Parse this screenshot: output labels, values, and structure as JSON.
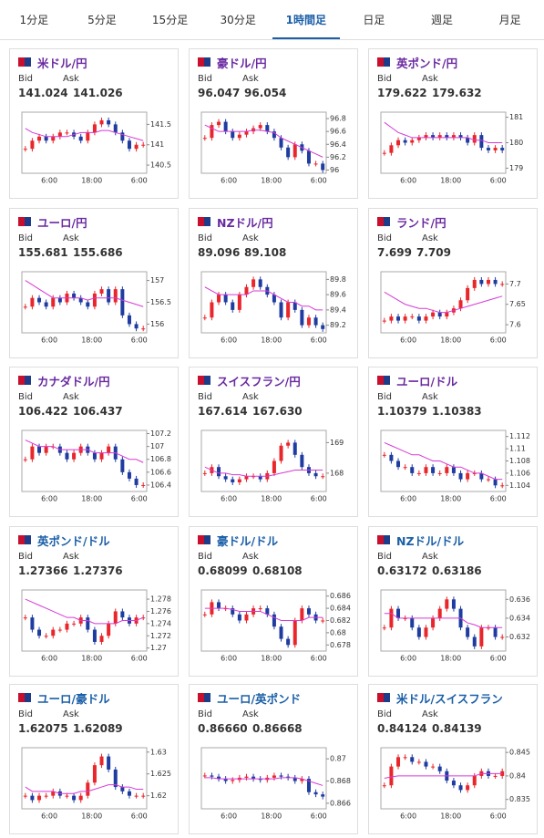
{
  "tabs": [
    "1分足",
    "5分足",
    "15分足",
    "30分足",
    "1時間足",
    "日足",
    "週足",
    "月足"
  ],
  "active_tab": 4,
  "cards": [
    {
      "name": "米ドル/円",
      "color": "#6a2aa0",
      "bid_label": "Bid",
      "ask_label": "Ask",
      "bid": "141.024",
      "ask": "141.026",
      "chart": {
        "type": "candlestick",
        "ylim": [
          140.3,
          141.8
        ],
        "yticks": [
          140.5,
          141,
          141.5
        ],
        "x_labels": [
          "6:00",
          "18:00",
          "6:00"
        ],
        "closes": [
          140.9,
          141.1,
          141.2,
          141.1,
          141.2,
          141.3,
          141.3,
          141.2,
          141.1,
          141.3,
          141.5,
          141.6,
          141.5,
          141.3,
          141.1,
          140.9,
          141.0,
          141.0
        ],
        "ma": [
          141.4,
          141.3,
          141.25,
          141.2,
          141.2,
          141.2,
          141.2,
          141.25,
          141.3,
          141.3,
          141.3,
          141.35,
          141.35,
          141.3,
          141.25,
          141.2,
          141.15,
          141.1
        ]
      }
    },
    {
      "name": "豪ドル/円",
      "color": "#6a2aa0",
      "bid_label": "Bid",
      "ask_label": "Ask",
      "bid": "96.047",
      "ask": "96.054",
      "chart": {
        "type": "candlestick",
        "ylim": [
          95.95,
          96.9
        ],
        "yticks": [
          96,
          96.2,
          96.4,
          96.6,
          96.8
        ],
        "x_labels": [
          "6:00",
          "18:00",
          "6:00"
        ],
        "closes": [
          96.5,
          96.7,
          96.75,
          96.6,
          96.5,
          96.55,
          96.6,
          96.65,
          96.7,
          96.6,
          96.5,
          96.35,
          96.2,
          96.4,
          96.3,
          96.1,
          96.1,
          96.0
        ],
        "ma": [
          96.7,
          96.65,
          96.6,
          96.6,
          96.6,
          96.6,
          96.6,
          96.62,
          96.62,
          96.6,
          96.58,
          96.5,
          96.45,
          96.4,
          96.35,
          96.3,
          96.25,
          96.2
        ]
      }
    },
    {
      "name": "英ポンド/円",
      "color": "#6a2aa0",
      "bid_label": "Bid",
      "ask_label": "Ask",
      "bid": "179.622",
      "ask": "179.632",
      "chart": {
        "type": "candlestick",
        "ylim": [
          178.8,
          181.2
        ],
        "yticks": [
          179,
          180,
          181
        ],
        "x_labels": [
          "6:00",
          "18:00",
          "6:00"
        ],
        "closes": [
          179.6,
          179.9,
          180.1,
          180.0,
          180.1,
          180.2,
          180.3,
          180.2,
          180.3,
          180.2,
          180.3,
          180.2,
          180.0,
          180.3,
          179.8,
          179.7,
          179.8,
          179.7
        ],
        "ma": [
          180.8,
          180.6,
          180.4,
          180.3,
          180.2,
          180.2,
          180.2,
          180.2,
          180.2,
          180.2,
          180.2,
          180.2,
          180.2,
          180.1,
          180.1,
          180.0,
          180.0,
          180.0
        ]
      }
    },
    {
      "name": "ユーロ/円",
      "color": "#6a2aa0",
      "bid_label": "Bid",
      "ask_label": "Ask",
      "bid": "155.681",
      "ask": "155.686",
      "chart": {
        "type": "candlestick",
        "ylim": [
          155.8,
          157.2
        ],
        "yticks": [
          156,
          156.5,
          157
        ],
        "x_labels": [
          "6:00",
          "18:00",
          "6:00"
        ],
        "closes": [
          156.4,
          156.6,
          156.5,
          156.4,
          156.6,
          156.5,
          156.7,
          156.6,
          156.5,
          156.4,
          156.7,
          156.8,
          156.5,
          156.8,
          156.2,
          156.0,
          155.9,
          155.9
        ],
        "ma": [
          157.0,
          156.9,
          156.8,
          156.7,
          156.6,
          156.6,
          156.6,
          156.6,
          156.6,
          156.55,
          156.6,
          156.6,
          156.6,
          156.6,
          156.55,
          156.5,
          156.45,
          156.4
        ]
      }
    },
    {
      "name": "NZドル/円",
      "color": "#6a2aa0",
      "bid_label": "Bid",
      "ask_label": "Ask",
      "bid": "89.096",
      "ask": "89.108",
      "chart": {
        "type": "candlestick",
        "ylim": [
          89.1,
          89.9
        ],
        "yticks": [
          89.2,
          89.4,
          89.6,
          89.8
        ],
        "x_labels": [
          "6:00",
          "18:00",
          "6:00"
        ],
        "closes": [
          89.3,
          89.5,
          89.6,
          89.5,
          89.4,
          89.6,
          89.7,
          89.8,
          89.7,
          89.6,
          89.5,
          89.3,
          89.5,
          89.4,
          89.2,
          89.3,
          89.2,
          89.15
        ],
        "ma": [
          89.7,
          89.65,
          89.6,
          89.6,
          89.6,
          89.6,
          89.6,
          89.65,
          89.65,
          89.65,
          89.6,
          89.55,
          89.5,
          89.5,
          89.45,
          89.45,
          89.4,
          89.4
        ]
      }
    },
    {
      "name": "ランド/円",
      "color": "#6a2aa0",
      "bid_label": "Bid",
      "ask_label": "Ask",
      "bid": "7.699",
      "ask": "7.709",
      "chart": {
        "type": "candlestick",
        "ylim": [
          7.58,
          7.73
        ],
        "yticks": [
          7.6,
          7.65,
          7.7
        ],
        "x_labels": [
          "6:00",
          "18:00",
          "6:00"
        ],
        "closes": [
          7.61,
          7.62,
          7.61,
          7.62,
          7.62,
          7.61,
          7.62,
          7.63,
          7.62,
          7.63,
          7.64,
          7.66,
          7.69,
          7.71,
          7.7,
          7.71,
          7.7,
          7.7
        ],
        "ma": [
          7.68,
          7.67,
          7.66,
          7.65,
          7.645,
          7.64,
          7.64,
          7.635,
          7.63,
          7.63,
          7.635,
          7.64,
          7.645,
          7.65,
          7.655,
          7.66,
          7.665,
          7.67
        ]
      }
    },
    {
      "name": "カナダドル/円",
      "color": "#6a2aa0",
      "bid_label": "Bid",
      "ask_label": "Ask",
      "bid": "106.422",
      "ask": "106.437",
      "chart": {
        "type": "candlestick",
        "ylim": [
          106.3,
          107.25
        ],
        "yticks": [
          106.4,
          106.6,
          106.8,
          107,
          107.2
        ],
        "x_labels": [
          "6:00",
          "18:00",
          "6:00"
        ],
        "closes": [
          106.8,
          107.0,
          106.9,
          107.0,
          107.0,
          106.9,
          106.8,
          106.9,
          107.0,
          106.9,
          106.8,
          106.9,
          107.0,
          106.8,
          106.6,
          106.5,
          106.4,
          106.4
        ],
        "ma": [
          107.1,
          107.05,
          107.0,
          107.0,
          107.0,
          106.95,
          106.95,
          106.95,
          106.95,
          106.95,
          106.9,
          106.9,
          106.9,
          106.9,
          106.85,
          106.8,
          106.8,
          106.75
        ]
      }
    },
    {
      "name": "スイスフラン/円",
      "color": "#6a2aa0",
      "bid_label": "Bid",
      "ask_label": "Ask",
      "bid": "167.614",
      "ask": "167.630",
      "chart": {
        "type": "candlestick",
        "ylim": [
          167.4,
          169.4
        ],
        "yticks": [
          168,
          169
        ],
        "x_labels": [
          "6:00",
          "18:00",
          "6:00"
        ],
        "closes": [
          168.0,
          168.2,
          167.9,
          167.8,
          167.7,
          167.8,
          167.9,
          167.9,
          167.8,
          168.0,
          168.4,
          168.9,
          169.0,
          168.6,
          168.2,
          168.0,
          167.9,
          167.9
        ],
        "ma": [
          168.2,
          168.1,
          168.0,
          168.0,
          167.95,
          167.95,
          167.9,
          167.9,
          167.9,
          167.9,
          167.95,
          168.0,
          168.05,
          168.1,
          168.1,
          168.1,
          168.1,
          168.1
        ]
      }
    },
    {
      "name": "ユーロ/ドル",
      "color": "#6a2aa0",
      "bid_label": "Bid",
      "ask_label": "Ask",
      "bid": "1.10379",
      "ask": "1.10383",
      "chart": {
        "type": "candlestick",
        "ylim": [
          1.103,
          1.113
        ],
        "yticks": [
          1.104,
          1.106,
          1.108,
          1.11,
          1.112
        ],
        "x_labels": [
          "6:00",
          "18:00",
          "6:00"
        ],
        "closes": [
          1.109,
          1.108,
          1.107,
          1.107,
          1.106,
          1.106,
          1.107,
          1.106,
          1.106,
          1.107,
          1.106,
          1.105,
          1.106,
          1.106,
          1.105,
          1.105,
          1.104,
          1.104
        ],
        "ma": [
          1.111,
          1.1105,
          1.11,
          1.1095,
          1.109,
          1.109,
          1.1085,
          1.108,
          1.108,
          1.1075,
          1.107,
          1.107,
          1.1065,
          1.106,
          1.106,
          1.1055,
          1.105,
          1.105
        ]
      }
    },
    {
      "name": "英ポンド/ドル",
      "color": "#1a5fa8",
      "bid_label": "Bid",
      "ask_label": "Ask",
      "bid": "1.27366",
      "ask": "1.27376",
      "chart": {
        "type": "candlestick",
        "ylim": [
          1.2695,
          1.2795
        ],
        "yticks": [
          1.27,
          1.272,
          1.274,
          1.276,
          1.278
        ],
        "x_labels": [
          "6:00",
          "18:00",
          "6:00"
        ],
        "closes": [
          1.275,
          1.273,
          1.272,
          1.272,
          1.273,
          1.273,
          1.274,
          1.274,
          1.275,
          1.273,
          1.271,
          1.272,
          1.274,
          1.276,
          1.275,
          1.274,
          1.275,
          1.275
        ],
        "ma": [
          1.278,
          1.2775,
          1.277,
          1.2765,
          1.276,
          1.2755,
          1.275,
          1.275,
          1.2745,
          1.2745,
          1.274,
          1.274,
          1.274,
          1.274,
          1.2745,
          1.2745,
          1.2745,
          1.275
        ]
      }
    },
    {
      "name": "豪ドル/ドル",
      "color": "#1a5fa8",
      "bid_label": "Bid",
      "ask_label": "Ask",
      "bid": "0.68099",
      "ask": "0.68108",
      "chart": {
        "type": "candlestick",
        "ylim": [
          0.677,
          0.687
        ],
        "yticks": [
          0.678,
          0.68,
          0.682,
          0.684,
          0.686
        ],
        "x_labels": [
          "6:00",
          "18:00",
          "6:00"
        ],
        "closes": [
          0.683,
          0.685,
          0.684,
          0.684,
          0.683,
          0.682,
          0.683,
          0.684,
          0.684,
          0.683,
          0.681,
          0.679,
          0.678,
          0.682,
          0.684,
          0.683,
          0.682,
          0.682
        ],
        "ma": [
          0.684,
          0.684,
          0.684,
          0.684,
          0.6838,
          0.6835,
          0.6835,
          0.6835,
          0.6835,
          0.683,
          0.6825,
          0.682,
          0.682,
          0.682,
          0.682,
          0.6825,
          0.6825,
          0.6825
        ]
      }
    },
    {
      "name": "NZドル/ドル",
      "color": "#1a5fa8",
      "bid_label": "Bid",
      "ask_label": "Ask",
      "bid": "0.63172",
      "ask": "0.63186",
      "chart": {
        "type": "candlestick",
        "ylim": [
          0.6305,
          0.637
        ],
        "yticks": [
          0.632,
          0.634,
          0.636
        ],
        "x_labels": [
          "6:00",
          "18:00",
          "6:00"
        ],
        "closes": [
          0.633,
          0.635,
          0.634,
          0.634,
          0.633,
          0.632,
          0.633,
          0.634,
          0.635,
          0.636,
          0.635,
          0.633,
          0.632,
          0.631,
          0.633,
          0.633,
          0.632,
          0.632
        ],
        "ma": [
          0.6345,
          0.6345,
          0.634,
          0.634,
          0.634,
          0.634,
          0.634,
          0.634,
          0.634,
          0.634,
          0.634,
          0.634,
          0.6335,
          0.6333,
          0.633,
          0.633,
          0.633,
          0.633
        ]
      }
    },
    {
      "name": "ユーロ/豪ドル",
      "color": "#1a5fa8",
      "bid_label": "Bid",
      "ask_label": "Ask",
      "bid": "1.62075",
      "ask": "1.62089",
      "chart": {
        "type": "candlestick",
        "ylim": [
          1.617,
          1.631
        ],
        "yticks": [
          1.62,
          1.625,
          1.63
        ],
        "x_labels": [
          "6:00",
          "18:00",
          "6:00"
        ],
        "closes": [
          1.62,
          1.619,
          1.62,
          1.62,
          1.621,
          1.62,
          1.62,
          1.619,
          1.62,
          1.623,
          1.627,
          1.629,
          1.626,
          1.622,
          1.621,
          1.62,
          1.62,
          1.62
        ],
        "ma": [
          1.622,
          1.621,
          1.621,
          1.621,
          1.621,
          1.6205,
          1.6205,
          1.6205,
          1.621,
          1.621,
          1.6215,
          1.622,
          1.6225,
          1.6225,
          1.622,
          1.622,
          1.6215,
          1.6215
        ]
      }
    },
    {
      "name": "ユーロ/英ポンド",
      "color": "#1a5fa8",
      "bid_label": "Bid",
      "ask_label": "Ask",
      "bid": "0.86660",
      "ask": "0.86668",
      "chart": {
        "type": "candlestick",
        "ylim": [
          0.8655,
          0.871
        ],
        "yticks": [
          0.866,
          0.868,
          0.87
        ],
        "x_labels": [
          "6:00",
          "18:00",
          "6:00"
        ],
        "closes": [
          0.8685,
          0.8684,
          0.8682,
          0.868,
          0.8681,
          0.8683,
          0.8684,
          0.8682,
          0.8681,
          0.8683,
          0.8685,
          0.8684,
          0.8683,
          0.868,
          0.8682,
          0.867,
          0.8668,
          0.8666
        ],
        "ma": [
          0.8683,
          0.8683,
          0.8682,
          0.8682,
          0.8682,
          0.8682,
          0.8682,
          0.8682,
          0.8682,
          0.8682,
          0.8682,
          0.8683,
          0.8683,
          0.8683,
          0.8682,
          0.868,
          0.8678,
          0.8676
        ]
      }
    },
    {
      "name": "米ドル/スイスフラン",
      "color": "#1a5fa8",
      "bid_label": "Bid",
      "ask_label": "Ask",
      "bid": "0.84124",
      "ask": "0.84139",
      "chart": {
        "type": "candlestick",
        "ylim": [
          0.833,
          0.846
        ],
        "yticks": [
          0.835,
          0.84,
          0.845
        ],
        "x_labels": [
          "6:00",
          "18:00",
          "6:00"
        ],
        "closes": [
          0.838,
          0.842,
          0.844,
          0.844,
          0.843,
          0.843,
          0.842,
          0.842,
          0.841,
          0.839,
          0.838,
          0.837,
          0.838,
          0.84,
          0.841,
          0.84,
          0.84,
          0.841
        ],
        "ma": [
          0.8395,
          0.8398,
          0.84,
          0.84,
          0.84,
          0.84,
          0.84,
          0.84,
          0.84,
          0.84,
          0.84,
          0.84,
          0.84,
          0.84,
          0.8405,
          0.8405,
          0.8405,
          0.8405
        ]
      }
    }
  ]
}
